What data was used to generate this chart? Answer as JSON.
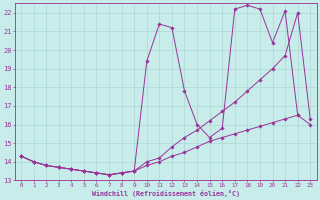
{
  "xlabel": "Windchill (Refroidissement éolien,°C)",
  "background_color": "#c8ecea",
  "grid_color": "#aad8d4",
  "line_color": "#993399",
  "xlim": [
    -0.5,
    23.5
  ],
  "ylim": [
    13,
    22.5
  ],
  "xticks": [
    0,
    1,
    2,
    3,
    4,
    5,
    6,
    7,
    8,
    9,
    10,
    11,
    12,
    13,
    14,
    15,
    16,
    17,
    18,
    19,
    20,
    21,
    22,
    23
  ],
  "yticks": [
    13,
    14,
    15,
    16,
    17,
    18,
    19,
    20,
    21,
    22
  ],
  "series": [
    {
      "x": [
        0,
        1,
        2,
        3,
        4,
        5,
        6,
        7,
        8,
        9,
        10,
        11,
        12,
        13,
        14,
        15,
        16,
        17,
        18,
        19,
        20,
        21,
        22,
        23
      ],
      "y": [
        14.3,
        14.0,
        13.8,
        13.7,
        13.6,
        13.5,
        13.4,
        13.3,
        13.4,
        13.5,
        14.0,
        14.2,
        14.8,
        15.3,
        15.7,
        16.2,
        16.7,
        17.2,
        17.8,
        18.4,
        19.0,
        19.7,
        22.0,
        16.3
      ]
    },
    {
      "x": [
        0,
        1,
        2,
        3,
        4,
        5,
        6,
        7,
        8,
        9,
        10,
        11,
        12,
        13,
        14,
        15,
        16,
        17,
        18,
        19,
        20,
        21,
        22
      ],
      "y": [
        14.3,
        14.0,
        13.8,
        13.7,
        13.6,
        13.5,
        13.4,
        13.3,
        13.4,
        13.5,
        19.4,
        21.4,
        21.2,
        17.8,
        16.0,
        15.3,
        15.8,
        22.2,
        22.4,
        22.2,
        20.4,
        22.1,
        16.5
      ]
    },
    {
      "x": [
        0,
        1,
        2,
        3,
        4,
        5,
        6,
        7,
        8,
        9,
        10,
        11,
        12,
        13,
        14,
        15,
        16,
        17,
        18,
        19,
        20,
        21,
        22,
        23
      ],
      "y": [
        14.3,
        14.0,
        13.8,
        13.7,
        13.6,
        13.5,
        13.4,
        13.3,
        13.4,
        13.5,
        13.8,
        14.0,
        14.3,
        14.5,
        14.8,
        15.1,
        15.3,
        15.5,
        15.7,
        15.9,
        16.1,
        16.3,
        16.5,
        16.0
      ]
    }
  ]
}
